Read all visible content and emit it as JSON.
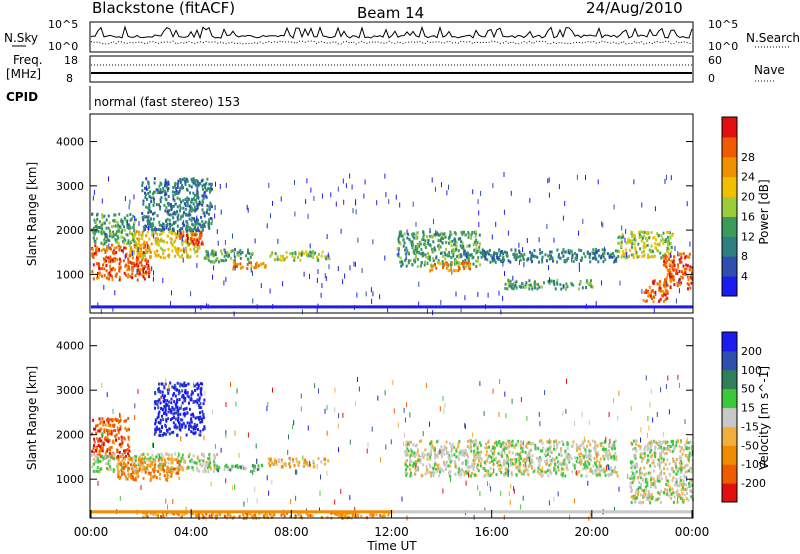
{
  "header": {
    "station": "Blackstone (fitACF)",
    "beam": "Beam 14",
    "date": "24/Aug/2010"
  },
  "params": {
    "nsky_label": "N.Sky",
    "nsky_ticks": [
      "10^5",
      "10^0"
    ],
    "nsearch_label": "N.Search",
    "nsearch_ticks": [
      "10^5",
      "10^0"
    ],
    "freq_label": "Freq.",
    "freq_unit": "[MHz]",
    "freq_ticks": [
      "18",
      "8"
    ],
    "nave_label": "Nave",
    "nave_ticks": [
      "60",
      "0"
    ],
    "cpid_label": "CPID",
    "cpid_text": "normal (fast stereo) 153"
  },
  "chart_data": [
    {
      "type": "heatmap",
      "panel": "power",
      "xlabel": "",
      "ylabel": "Slant Range [km]",
      "xlim": [
        0,
        24
      ],
      "ylim": [
        150,
        4600
      ],
      "yticks": [
        "1000",
        "2000",
        "3000",
        "4000"
      ],
      "colorbar": {
        "label": "Power [dB]",
        "ticks": [
          "4",
          "8",
          "12",
          "16",
          "20",
          "24",
          "28"
        ],
        "colors": [
          "#1c1cf0",
          "#2e4fb0",
          "#2e7f7f",
          "#3c9a5a",
          "#9ccc3c",
          "#f0c000",
          "#f09000",
          "#f05a00",
          "#e01010"
        ]
      },
      "regions": [
        {
          "t0": 0.0,
          "t1": 2.3,
          "r0": 900,
          "r1": 1700,
          "level": 7
        },
        {
          "t0": 0.0,
          "t1": 1.8,
          "r0": 1700,
          "r1": 2400,
          "level": 3
        },
        {
          "t0": 1.5,
          "t1": 4.3,
          "r0": 1400,
          "r1": 2000,
          "level": 5
        },
        {
          "t0": 3.5,
          "t1": 4.5,
          "r0": 1700,
          "r1": 2000,
          "level": 7
        },
        {
          "t0": 2.0,
          "t1": 4.8,
          "r0": 2000,
          "r1": 3200,
          "level": 2
        },
        {
          "t0": 4.5,
          "t1": 6.5,
          "r0": 1300,
          "r1": 1600,
          "level": 3
        },
        {
          "t0": 5.5,
          "t1": 7.0,
          "r0": 1150,
          "r1": 1300,
          "level": 6
        },
        {
          "t0": 7.0,
          "t1": 9.5,
          "r0": 1350,
          "r1": 1550,
          "level": 4
        },
        {
          "t0": 12.2,
          "t1": 15.5,
          "r0": 1200,
          "r1": 2000,
          "level": 3
        },
        {
          "t0": 13.5,
          "t1": 15.2,
          "r0": 1100,
          "r1": 1300,
          "level": 6
        },
        {
          "t0": 15.5,
          "t1": 21.0,
          "r0": 1300,
          "r1": 1600,
          "level": 2
        },
        {
          "t0": 16.5,
          "t1": 20.0,
          "r0": 700,
          "r1": 900,
          "level": 3
        },
        {
          "t0": 21.0,
          "t1": 23.2,
          "r0": 1400,
          "r1": 2000,
          "level": 4
        },
        {
          "t0": 22.0,
          "t1": 23.0,
          "r0": 400,
          "r1": 900,
          "level": 7
        },
        {
          "t0": 22.8,
          "t1": 24.0,
          "r0": 700,
          "r1": 1500,
          "level": 7
        }
      ]
    },
    {
      "type": "heatmap",
      "panel": "velocity",
      "xlabel": "Time UT",
      "ylabel": "Slant Range [km]",
      "xlim": [
        0,
        24
      ],
      "ylim": [
        150,
        4600
      ],
      "xticks": [
        "00:00",
        "04:00",
        "08:00",
        "12:00",
        "16:00",
        "20:00",
        "00:00"
      ],
      "yticks": [
        "1000",
        "2000",
        "3000",
        "4000"
      ],
      "colorbar": {
        "label": "Velocity [m s^-1]",
        "ticks": [
          "200",
          "100",
          "50",
          "15",
          "-15",
          "-50",
          "-100",
          "-200"
        ],
        "colors": [
          "#1c1cf0",
          "#2e4fb0",
          "#2e7f5a",
          "#3cc83c",
          "#c8c8c8",
          "#f0b040",
          "#f08c00",
          "#f05a00",
          "#e01010"
        ]
      },
      "regions": [
        {
          "t0": 0.0,
          "t1": 1.5,
          "r0": 1500,
          "r1": 2400,
          "level": 7
        },
        {
          "t0": 0.0,
          "t1": 5.0,
          "r0": 1200,
          "r1": 1600,
          "level": 4
        },
        {
          "t0": 1.0,
          "t1": 3.5,
          "r0": 1000,
          "r1": 1500,
          "level": 6
        },
        {
          "t0": 2.5,
          "t1": 4.5,
          "r0": 2000,
          "r1": 3200,
          "level": 0
        },
        {
          "t0": 5.0,
          "t1": 7.0,
          "r0": 1200,
          "r1": 1350,
          "level": 3
        },
        {
          "t0": 7.0,
          "t1": 9.5,
          "r0": 1300,
          "r1": 1500,
          "level": 5
        },
        {
          "t0": 12.5,
          "t1": 21.0,
          "r0": 1100,
          "r1": 1900,
          "level": 4
        },
        {
          "t0": 21.5,
          "t1": 24.0,
          "r0": 500,
          "r1": 1900,
          "level": 4
        },
        {
          "t0": 2.0,
          "t1": 12.0,
          "r0": 150,
          "r1": 300,
          "level": 6
        }
      ]
    }
  ]
}
